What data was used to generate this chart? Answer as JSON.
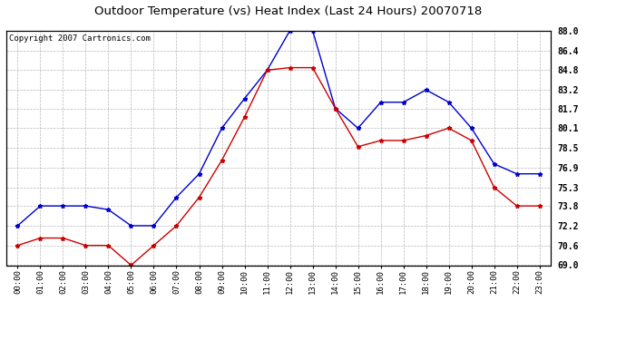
{
  "title": "Outdoor Temperature (vs) Heat Index (Last 24 Hours) 20070718",
  "copyright": "Copyright 2007 Cartronics.com",
  "hours": [
    "00:00",
    "01:00",
    "02:00",
    "03:00",
    "04:00",
    "05:00",
    "06:00",
    "07:00",
    "08:00",
    "09:00",
    "10:00",
    "11:00",
    "12:00",
    "13:00",
    "14:00",
    "15:00",
    "16:00",
    "17:00",
    "18:00",
    "19:00",
    "20:00",
    "21:00",
    "22:00",
    "23:00"
  ],
  "blue_temp": [
    72.2,
    73.8,
    73.8,
    73.8,
    73.5,
    72.2,
    72.2,
    74.5,
    76.4,
    80.1,
    82.5,
    84.8,
    88.0,
    88.0,
    81.7,
    80.1,
    82.2,
    82.2,
    83.2,
    82.2,
    80.1,
    77.2,
    76.4,
    76.4
  ],
  "red_heat": [
    70.6,
    71.2,
    71.2,
    70.6,
    70.6,
    69.0,
    70.6,
    72.2,
    74.5,
    77.5,
    81.0,
    84.8,
    85.0,
    85.0,
    81.7,
    78.6,
    79.1,
    79.1,
    79.5,
    80.1,
    79.1,
    75.3,
    73.8,
    73.8
  ],
  "ylim_min": 69.0,
  "ylim_max": 88.0,
  "yticks": [
    69.0,
    70.6,
    72.2,
    73.8,
    75.3,
    76.9,
    78.5,
    80.1,
    81.7,
    83.2,
    84.8,
    86.4,
    88.0
  ],
  "blue_color": "#0000cc",
  "red_color": "#cc0000",
  "bg_color": "#ffffff",
  "plot_bg": "#ffffff",
  "grid_color": "#b0b0b0",
  "title_fontsize": 9.5,
  "copyright_fontsize": 6.5,
  "tick_fontsize": 6.5,
  "ytick_fontsize": 7.0
}
